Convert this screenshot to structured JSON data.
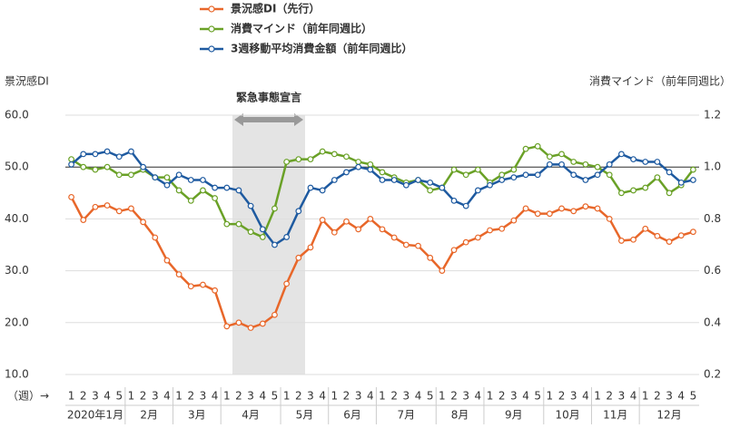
{
  "chart_data": {
    "type": "line",
    "ylabel": "景況感DI",
    "y2label": "消費マインド（前年同週比）",
    "xlabel": "（週）→",
    "annotation": "緊急事態宣言",
    "categories": [
      "1",
      "2",
      "3",
      "4",
      "5",
      "1",
      "2",
      "3",
      "4",
      "1",
      "2",
      "3",
      "4",
      "1",
      "2",
      "3",
      "4",
      "5",
      "1",
      "2",
      "3",
      "4",
      "1",
      "2",
      "3",
      "4",
      "1",
      "2",
      "3",
      "4",
      "5",
      "1",
      "2",
      "3",
      "4",
      "1",
      "2",
      "3",
      "4",
      "5",
      "1",
      "2",
      "3",
      "4",
      "1",
      "2",
      "3",
      "4",
      "1",
      "2",
      "3",
      "4",
      "5"
    ],
    "months": [
      "2020年1月",
      "2月",
      "3月",
      "4月",
      "5月",
      "6月",
      "7月",
      "8月",
      "9月",
      "10月",
      "11月",
      "12月"
    ],
    "ylim": [
      10,
      60
    ],
    "yticks": [
      {
        "value": 10,
        "label": "10.0"
      },
      {
        "value": 20,
        "label": "20.0"
      },
      {
        "value": 30,
        "label": "30.0"
      },
      {
        "value": 40,
        "label": "40.0"
      },
      {
        "value": 50,
        "label": "50.0"
      },
      {
        "value": 60,
        "label": "60.0"
      }
    ],
    "y2lim": [
      0.2,
      1.2
    ],
    "y2ticks": [
      0.2,
      0.4,
      0.6,
      0.8,
      {
        "value": 1.0,
        "label": "1.0"
      },
      1.2
    ],
    "hline": 50,
    "grid": true,
    "series": [
      {
        "name": "景況感DI（先行）",
        "color": "#e8672a",
        "values": [
          44.2,
          39.8,
          42.3,
          42.6,
          41.5,
          42.0,
          39.4,
          36.4,
          32.0,
          29.3,
          27.0,
          27.3,
          26.2,
          19.3,
          20.0,
          19.0,
          19.8,
          21.5,
          27.5,
          32.5,
          34.5,
          39.8,
          37.4,
          39.5,
          38.0,
          40.0,
          38.0,
          36.4,
          35.0,
          34.8,
          32.5,
          30.0,
          34.0,
          35.5,
          36.4,
          37.8,
          38.1,
          39.7,
          42.0,
          41.0,
          41.0,
          42.0,
          41.5,
          42.4,
          42.0,
          40.0,
          35.8,
          36.0,
          38.1,
          36.7,
          35.6,
          36.8,
          37.5
        ]
      },
      {
        "name": "消費マインド（前年同週比）",
        "color": "#6aa127",
        "axis": "y2",
        "values": [
          1.03,
          1.0,
          0.99,
          1.0,
          0.97,
          0.97,
          0.99,
          0.96,
          0.96,
          0.91,
          0.87,
          0.91,
          0.88,
          0.78,
          0.78,
          0.75,
          0.73,
          0.84,
          1.02,
          1.03,
          1.03,
          1.06,
          1.05,
          1.04,
          1.02,
          1.01,
          0.98,
          0.96,
          0.94,
          0.95,
          0.91,
          0.92,
          0.99,
          0.97,
          0.99,
          0.94,
          0.97,
          0.99,
          1.07,
          1.08,
          1.04,
          1.05,
          1.02,
          1.01,
          1.0,
          0.97,
          0.9,
          0.91,
          0.92,
          0.96,
          0.9,
          0.93,
          0.99
        ]
      },
      {
        "name": "3週移動平均消費金額（前年同週比）",
        "color": "#1e5aa0",
        "axis": "y2",
        "values": [
          1.01,
          1.05,
          1.05,
          1.06,
          1.04,
          1.06,
          1.0,
          0.96,
          0.93,
          0.97,
          0.95,
          0.95,
          0.92,
          0.92,
          0.91,
          0.85,
          0.76,
          0.7,
          0.73,
          0.83,
          0.92,
          0.91,
          0.95,
          0.98,
          1.0,
          0.99,
          0.95,
          0.95,
          0.93,
          0.95,
          0.94,
          0.92,
          0.87,
          0.85,
          0.91,
          0.93,
          0.95,
          0.96,
          0.97,
          0.97,
          1.01,
          1.01,
          0.97,
          0.95,
          0.97,
          1.01,
          1.05,
          1.03,
          1.02,
          1.02,
          0.98,
          0.94,
          0.95
        ]
      }
    ]
  }
}
